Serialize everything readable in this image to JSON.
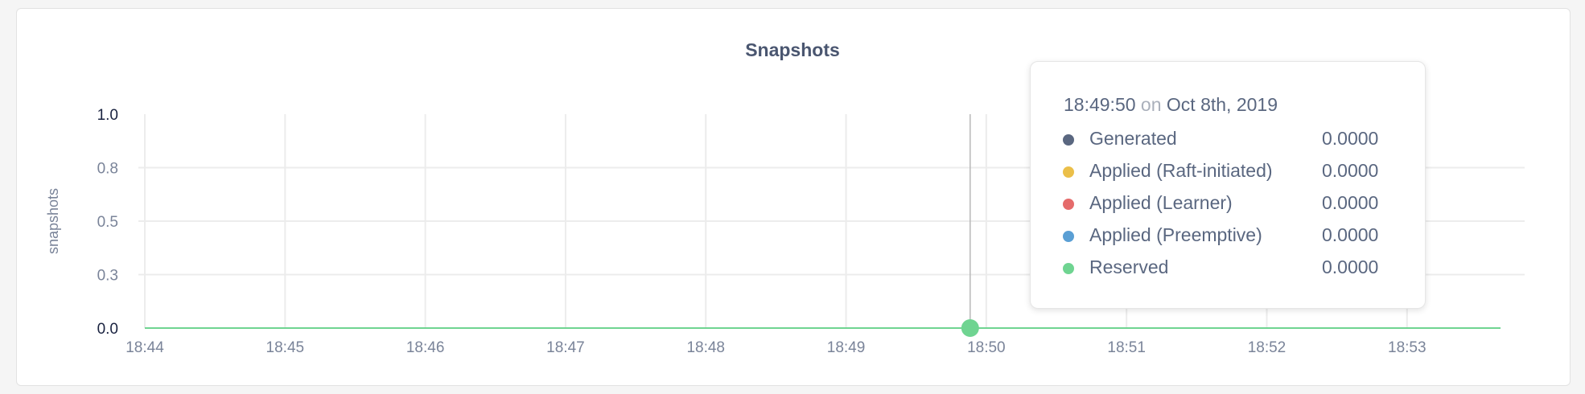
{
  "chart_data": {
    "type": "line",
    "title": "Snapshots",
    "ylabel": "snapshots",
    "xlabel": "",
    "ylim": [
      0,
      1
    ],
    "yticks": [
      0,
      0.25,
      0.5,
      0.75,
      1.0
    ],
    "ytick_labels": [
      "0.0",
      "0.3",
      "0.5",
      "0.8",
      "1.0"
    ],
    "xtick_labels": [
      "18:44",
      "18:45",
      "18:46",
      "18:47",
      "18:48",
      "18:49",
      "18:50",
      "18:51",
      "18:52",
      "18:53"
    ],
    "xlim": [
      "18:44:00",
      "18:53:40"
    ],
    "grid": true,
    "x": [
      "18:44:00",
      "18:45:00",
      "18:46:00",
      "18:47:00",
      "18:48:00",
      "18:49:00",
      "18:50:00",
      "18:51:00",
      "18:52:00",
      "18:53:00",
      "18:53:40"
    ],
    "series": [
      {
        "name": "Generated",
        "color": "#5a6780",
        "values": [
          0,
          0,
          0,
          0,
          0,
          0,
          0,
          0,
          0,
          0,
          0
        ]
      },
      {
        "name": "Applied (Raft-initiated)",
        "color": "#ebbf49",
        "values": [
          0,
          0,
          0,
          0,
          0,
          0,
          0,
          0,
          0,
          0,
          0
        ]
      },
      {
        "name": "Applied (Learner)",
        "color": "#e56b6b",
        "values": [
          0,
          0,
          0,
          0,
          0,
          0,
          0,
          0,
          0,
          0,
          0
        ]
      },
      {
        "name": "Applied (Preemptive)",
        "color": "#5a9fd4",
        "values": [
          0,
          0,
          0,
          0,
          0,
          0,
          0,
          0,
          0,
          0,
          0
        ]
      },
      {
        "name": "Reserved",
        "color": "#6fd491",
        "values": [
          0,
          0,
          0,
          0,
          0,
          0,
          0,
          0,
          0,
          0,
          0
        ]
      }
    ],
    "hover": {
      "x": "18:49:50"
    }
  },
  "tooltip": {
    "time": "18:49:50",
    "on": "on",
    "date": "Oct 8th, 2019",
    "rows": [
      {
        "label": "Generated",
        "value": "0.0000",
        "color": "#5a6780"
      },
      {
        "label": "Applied (Raft-initiated)",
        "value": "0.0000",
        "color": "#ebbf49"
      },
      {
        "label": "Applied (Learner)",
        "value": "0.0000",
        "color": "#e56b6b"
      },
      {
        "label": "Applied (Preemptive)",
        "value": "0.0000",
        "color": "#5a9fd4"
      },
      {
        "label": "Reserved",
        "value": "0.0000",
        "color": "#6fd491"
      }
    ]
  }
}
